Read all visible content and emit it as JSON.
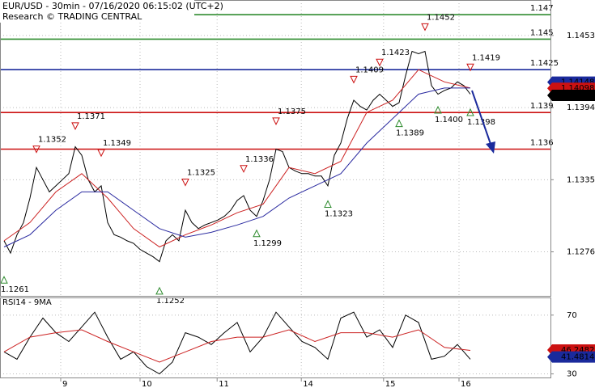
{
  "chart_data": [
    {
      "type": "line",
      "title": "EUR/USD - 30min - 07/16/2020 06:15:02 (UTC+2)",
      "subtitle": "Research © TRADING CENTRAL",
      "xlim": [
        -0.625,
        84.375
      ],
      "ylim": [
        1.124,
        1.1482
      ],
      "yticks": [
        1.1276,
        1.1335,
        1.1394,
        1.1453
      ],
      "grid": true,
      "series": [
        {
          "color": "#000000",
          "x": [
            0,
            1,
            2,
            3,
            4,
            5,
            6,
            7,
            8,
            9,
            10,
            11,
            12,
            13,
            14,
            15,
            16,
            17,
            18,
            19,
            20,
            21,
            22,
            23,
            24,
            25,
            26,
            27,
            28,
            29,
            30,
            31,
            32,
            33,
            34,
            35,
            36,
            37,
            38,
            39,
            40,
            41,
            42,
            43,
            44,
            45,
            46,
            47,
            48,
            49,
            50,
            51,
            52,
            53,
            54,
            55,
            56,
            57,
            58,
            59,
            60,
            61,
            62,
            63,
            64,
            65,
            66,
            67,
            68,
            69,
            70,
            71,
            72
          ],
          "values": [
            1.1285,
            1.1275,
            1.129,
            1.13,
            1.132,
            1.1345,
            1.1335,
            1.1325,
            1.133,
            1.1335,
            1.134,
            1.1362,
            1.1355,
            1.1335,
            1.1325,
            1.133,
            1.13,
            1.129,
            1.1288,
            1.1285,
            1.1283,
            1.1278,
            1.1275,
            1.1272,
            1.1268,
            1.1285,
            1.129,
            1.1285,
            1.131,
            1.13,
            1.1295,
            1.1298,
            1.13,
            1.1302,
            1.1305,
            1.131,
            1.1318,
            1.1322,
            1.131,
            1.1305,
            1.1318,
            1.1335,
            1.136,
            1.1358,
            1.1345,
            1.1342,
            1.134,
            1.134,
            1.1338,
            1.1338,
            1.133,
            1.1355,
            1.1365,
            1.1385,
            1.14,
            1.1395,
            1.1392,
            1.14,
            1.1405,
            1.14,
            1.1395,
            1.1398,
            1.142,
            1.144,
            1.1438,
            1.144,
            1.1412,
            1.1405,
            1.1408,
            1.141,
            1.1415,
            1.1412,
            1.1405
          ]
        },
        {
          "color": "#cc2222",
          "x": [
            0,
            4,
            8,
            12,
            16,
            20,
            24,
            28,
            32,
            36,
            40,
            44,
            48,
            52,
            56,
            60,
            64,
            68,
            72
          ],
          "values": [
            1.1285,
            1.13,
            1.1325,
            1.134,
            1.132,
            1.1295,
            1.128,
            1.129,
            1.1298,
            1.1308,
            1.1315,
            1.1345,
            1.134,
            1.135,
            1.139,
            1.14,
            1.1425,
            1.1415,
            1.141
          ]
        },
        {
          "color": "#2a2aa0",
          "x": [
            0,
            4,
            8,
            12,
            16,
            20,
            24,
            28,
            32,
            36,
            40,
            44,
            48,
            52,
            56,
            60,
            64,
            68,
            72
          ],
          "values": [
            1.128,
            1.129,
            1.131,
            1.1325,
            1.1325,
            1.131,
            1.1295,
            1.1288,
            1.1292,
            1.1298,
            1.1305,
            1.132,
            1.133,
            1.134,
            1.1365,
            1.1385,
            1.1405,
            1.141,
            1.141
          ]
        }
      ],
      "levels": [
        {
          "value": 1.147,
          "color": "#2e8b2e"
        },
        {
          "value": 1.145,
          "color": "#2e8b2e"
        },
        {
          "value": 1.1425,
          "color": "#1a2a9c"
        },
        {
          "value": 1.139,
          "color": "#cc1111"
        },
        {
          "value": 1.136,
          "color": "#cc1111"
        }
      ],
      "price_boxes": [
        {
          "value": 1.14148,
          "color": "#1a2a9c"
        },
        {
          "value": 1.14098,
          "color": "#cc1111"
        },
        {
          "value": 1.1404,
          "color": "#000000"
        }
      ],
      "highs": [
        {
          "x": 5,
          "value": 1.1352,
          "label": "1.1352"
        },
        {
          "x": 11,
          "value": 1.1371,
          "label": "1.1371"
        },
        {
          "x": 15,
          "value": 1.1349,
          "label": "1.1349"
        },
        {
          "x": 28,
          "value": 1.1325,
          "label": "1.1325"
        },
        {
          "x": 37,
          "value": 1.1336,
          "label": "1.1336"
        },
        {
          "x": 42,
          "value": 1.1375,
          "label": "1.1375"
        },
        {
          "x": 54,
          "value": 1.1409,
          "label": "1.1409"
        },
        {
          "x": 58,
          "value": 1.1423,
          "label": "1.1423"
        },
        {
          "x": 65,
          "value": 1.1452,
          "label": "1.1452"
        },
        {
          "x": 72,
          "value": 1.1419,
          "label": "1.1419"
        }
      ],
      "lows": [
        {
          "x": 0,
          "value": 1.1261,
          "label": "1.1261"
        },
        {
          "x": 24,
          "value": 1.1252,
          "label": "1.1252"
        },
        {
          "x": 39,
          "value": 1.1299,
          "label": "1.1299"
        },
        {
          "x": 50,
          "value": 1.1323,
          "label": "1.1323"
        },
        {
          "x": 61,
          "value": 1.1389,
          "label": "1.1389"
        },
        {
          "x": 67,
          "value": 1.14,
          "label": "1.1400"
        },
        {
          "x": 72,
          "value": 1.1398,
          "label": "1.1398"
        }
      ]
    },
    {
      "type": "line",
      "title": "RSI14 - 9MA",
      "xlim": [
        -0.625,
        84.375
      ],
      "ylim": [
        27,
        82
      ],
      "yticks": [
        30,
        70
      ],
      "xticks": [
        {
          "value": 8.75,
          "label": "9"
        },
        {
          "value": 21,
          "label": "10"
        },
        {
          "value": 32.9,
          "label": "11"
        },
        {
          "value": 45.9,
          "label": "14"
        },
        {
          "value": 58.6,
          "label": "15"
        },
        {
          "value": 70.25,
          "label": "16"
        }
      ],
      "grid": true,
      "series": [
        {
          "color": "#000000",
          "x": [
            0,
            2,
            4,
            6,
            8,
            10,
            12,
            14,
            16,
            18,
            20,
            22,
            24,
            26,
            28,
            30,
            32,
            34,
            36,
            38,
            40,
            42,
            44,
            46,
            48,
            50,
            52,
            54,
            56,
            58,
            60,
            62,
            64,
            66,
            68,
            70,
            72
          ],
          "values": [
            45,
            40,
            55,
            68,
            58,
            52,
            62,
            72,
            55,
            40,
            45,
            35,
            30,
            38,
            58,
            55,
            50,
            58,
            65,
            45,
            55,
            72,
            62,
            52,
            48,
            40,
            68,
            72,
            55,
            60,
            48,
            70,
            65,
            40,
            42,
            50,
            40
          ]
        },
        {
          "color": "#cc2222",
          "x": [
            0,
            4,
            8,
            12,
            16,
            20,
            24,
            28,
            32,
            36,
            40,
            44,
            48,
            52,
            56,
            60,
            64,
            68,
            72
          ],
          "values": [
            45,
            55,
            58,
            60,
            52,
            45,
            38,
            45,
            52,
            55,
            55,
            60,
            52,
            58,
            58,
            55,
            60,
            48,
            46
          ]
        }
      ],
      "price_boxes": [
        {
          "value": 46.2482,
          "color": "#cc1111"
        },
        {
          "value": 41.4814,
          "color": "#1a2a9c"
        }
      ]
    }
  ]
}
